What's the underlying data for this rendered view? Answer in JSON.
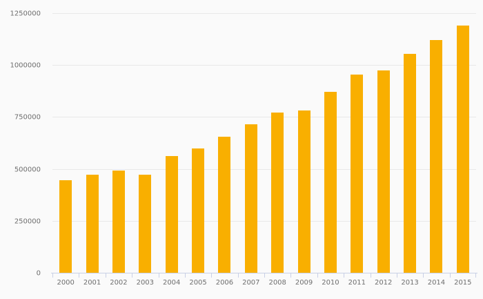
{
  "chart_data": {
    "type": "bar",
    "title": "",
    "xlabel": "",
    "ylabel": "",
    "categories": [
      "2000",
      "2001",
      "2002",
      "2003",
      "2004",
      "2005",
      "2006",
      "2007",
      "2008",
      "2009",
      "2010",
      "2011",
      "2012",
      "2013",
      "2014",
      "2015"
    ],
    "values": [
      450000,
      475000,
      495000,
      477000,
      566000,
      602000,
      658000,
      719000,
      775000,
      785000,
      875000,
      958000,
      978000,
      1058000,
      1125000,
      1195000
    ],
    "ylim": [
      0,
      1250000
    ],
    "y_ticks": [
      0,
      250000,
      500000,
      750000,
      1000000,
      1250000
    ],
    "y_tick_labels": [
      "0",
      "250000",
      "500000",
      "750000",
      "1000000",
      "1250000"
    ],
    "grid": true,
    "legend": false
  },
  "style": {
    "background": "#fafafa",
    "bar_color": "#f9af00",
    "gridline_color": "#e8e8e8",
    "axis_line_color": "#c9d0e6",
    "label_color": "#6d6d6d"
  }
}
